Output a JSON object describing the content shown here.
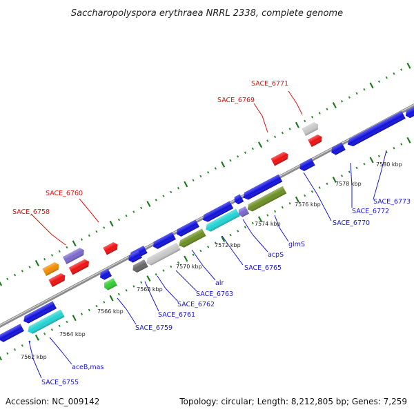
{
  "title": "Saccharopolyspora erythraea NRRL 2338, complete genome",
  "footer": {
    "accession": "Accession: NC_009142",
    "info": "Topology: circular; Length: 8,212,805 bp; Genes: 7,259"
  },
  "colors": {
    "backbone": "#8c8c8c",
    "tick_major": "#1f7a1f",
    "tick_minor": "#2e8b2e",
    "label_forward": "#dd1111",
    "label_reverse": "#1a1acc",
    "leader_forward": "#dd1111",
    "leader_reverse": "#1a1acc"
  },
  "ticks": [
    {
      "label": "7562 kbp",
      "kbp": 7562
    },
    {
      "label": "7564 kbp",
      "kbp": 7564
    },
    {
      "label": "7566 kbp",
      "kbp": 7566
    },
    {
      "label": "7568 kbp",
      "kbp": 7568
    },
    {
      "label": "7570 kbp",
      "kbp": 7570
    },
    {
      "label": "7572 kbp",
      "kbp": 7572
    },
    {
      "label": "7574 kbp",
      "kbp": 7574
    },
    {
      "label": "7576 kbp",
      "kbp": 7576
    },
    {
      "label": "7578 kbp",
      "kbp": 7578
    },
    {
      "label": "7580 kbp",
      "kbp": 7580
    }
  ],
  "labels": [
    {
      "text": "SACE_6758",
      "strand": "forward"
    },
    {
      "text": "SACE_6760",
      "strand": "forward"
    },
    {
      "text": "SACE_6769",
      "strand": "forward"
    },
    {
      "text": "SACE_6771",
      "strand": "forward"
    },
    {
      "text": "SACE_6755",
      "strand": "reverse"
    },
    {
      "text": "aceB,mas",
      "strand": "reverse"
    },
    {
      "text": "SACE_6759",
      "strand": "reverse"
    },
    {
      "text": "SACE_6761",
      "strand": "reverse"
    },
    {
      "text": "SACE_6762",
      "strand": "reverse"
    },
    {
      "text": "SACE_6763",
      "strand": "reverse"
    },
    {
      "text": "alr",
      "strand": "reverse"
    },
    {
      "text": "SACE_6765",
      "strand": "reverse"
    },
    {
      "text": "acpS",
      "strand": "reverse"
    },
    {
      "text": "glmS",
      "strand": "reverse"
    },
    {
      "text": "SACE_6770",
      "strand": "reverse"
    },
    {
      "text": "SACE_6772",
      "strand": "reverse"
    },
    {
      "text": "SACE_6773",
      "strand": "reverse"
    }
  ],
  "gene_colors": {
    "blue": "#1111dd",
    "cyan": "#22d3d3",
    "olive": "#6b8e23",
    "red": "#ee1111",
    "orange": "#f28c00",
    "purple": "#7b68cc",
    "green": "#33cc33",
    "light_gray": "#c8c8c8",
    "dark_gray": "#666666"
  }
}
